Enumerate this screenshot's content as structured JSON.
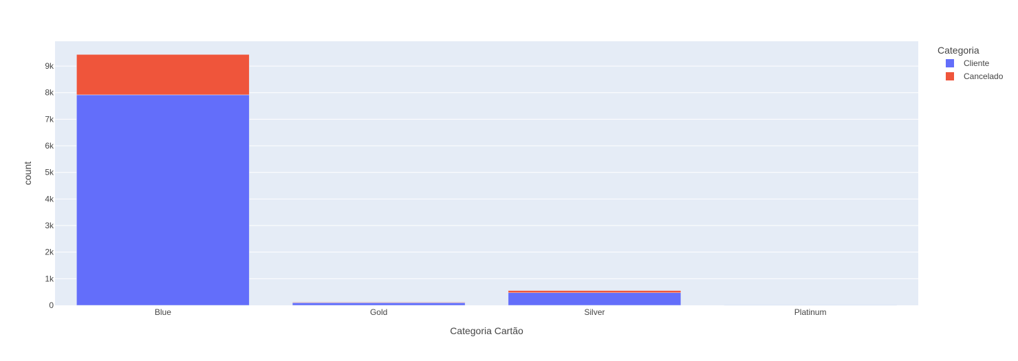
{
  "chart_data": {
    "type": "bar",
    "barmode": "stack",
    "categories": [
      "Blue",
      "Gold",
      "Silver",
      "Platinum"
    ],
    "series": [
      {
        "name": "Cliente",
        "values": [
          7917,
          95,
          473,
          15
        ],
        "color": "#636efa"
      },
      {
        "name": "Cancelado",
        "values": [
          1519,
          21,
          82,
          5
        ],
        "color": "#ef553b"
      }
    ],
    "xlabel": "Categoria Cartão",
    "ylabel": "count",
    "ylim": [
      0,
      9933
    ],
    "yticks": [
      0,
      1000,
      2000,
      3000,
      4000,
      5000,
      6000,
      7000,
      8000,
      9000
    ],
    "ytick_labels": [
      "0",
      "1k",
      "2k",
      "3k",
      "4k",
      "5k",
      "6k",
      "7k",
      "8k",
      "9k"
    ],
    "grid": true,
    "plot_background": "#e5ecf6",
    "legend": {
      "title": "Categoria",
      "placement": "top-right"
    }
  }
}
